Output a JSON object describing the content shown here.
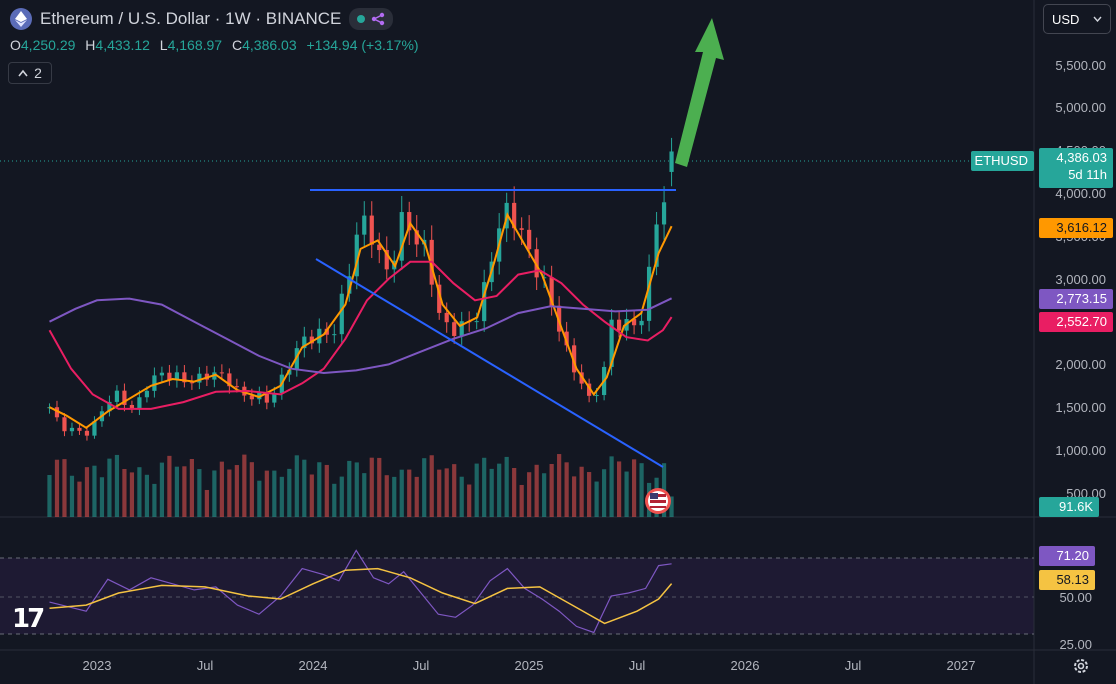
{
  "header": {
    "title": "Ethereum / U.S. Dollar · 1W · BINANCE",
    "ohlc": [
      {
        "key": "O",
        "value": "4,250.29"
      },
      {
        "key": "H",
        "value": "4,433.12"
      },
      {
        "key": "L",
        "value": "4,168.97"
      },
      {
        "key": "C",
        "value": "4,386.03"
      }
    ],
    "change": "+134.94 (+3.17%)",
    "indicators_collapsed_count": "2"
  },
  "currency": "USD",
  "colors": {
    "background": "#131722",
    "up": "#26a69a",
    "down": "#ef5350",
    "ema_fast": "#ff9800",
    "ema_mid": "#e91e63",
    "ema_slow": "#7e57c2",
    "trendline": "#2962ff",
    "arrow": "#4caf50",
    "rsi": "#7e57c2",
    "rsi_ma": "#f5c342"
  },
  "chart_data": [
    {
      "type": "candlestick",
      "symbol": "ETHUSD",
      "x_ticks": [
        "2023",
        "Jul",
        "2024",
        "Jul",
        "2025",
        "Jul",
        "2026",
        "Jul",
        "2027"
      ],
      "y_ticks": [
        "5,500.00",
        "5,000.00",
        "4,500.00",
        "4,000.00",
        "3,500.00",
        "3,000.00",
        "2,500.00",
        "2,000.00",
        "1,500.00",
        "1,000.00",
        "500.00"
      ],
      "ylim": [
        450,
        5800
      ],
      "price_anchors": [
        [
          2022.78,
          1500
        ],
        [
          2022.83,
          1280
        ],
        [
          2022.9,
          1220
        ],
        [
          2022.97,
          1200
        ],
        [
          2023.04,
          1560
        ],
        [
          2023.1,
          1650
        ],
        [
          2023.17,
          1450
        ],
        [
          2023.23,
          1750
        ],
        [
          2023.3,
          1900
        ],
        [
          2023.36,
          1850
        ],
        [
          2023.45,
          1800
        ],
        [
          2023.52,
          1900
        ],
        [
          2023.6,
          1850
        ],
        [
          2023.66,
          1650
        ],
        [
          2023.75,
          1620
        ],
        [
          2023.8,
          1580
        ],
        [
          2023.85,
          1800
        ],
        [
          2023.9,
          2050
        ],
        [
          2023.96,
          2300
        ],
        [
          2024.04,
          2350
        ],
        [
          2024.1,
          2400
        ],
        [
          2024.15,
          2900
        ],
        [
          2024.2,
          3500
        ],
        [
          2024.25,
          3700
        ],
        [
          2024.3,
          3300
        ],
        [
          2024.35,
          3050
        ],
        [
          2024.42,
          3750
        ],
        [
          2024.48,
          3450
        ],
        [
          2024.53,
          3300
        ],
        [
          2024.58,
          2600
        ],
        [
          2024.63,
          2400
        ],
        [
          2024.7,
          2450
        ],
        [
          2024.77,
          2600
        ],
        [
          2024.83,
          3300
        ],
        [
          2024.88,
          3800
        ],
        [
          2024.94,
          3700
        ],
        [
          2025.0,
          3300
        ],
        [
          2025.06,
          3000
        ],
        [
          2025.12,
          2600
        ],
        [
          2025.18,
          2100
        ],
        [
          2025.24,
          1800
        ],
        [
          2025.28,
          1580
        ],
        [
          2025.34,
          1800
        ],
        [
          2025.38,
          2500
        ],
        [
          2025.45,
          2450
        ],
        [
          2025.5,
          2500
        ],
        [
          2025.54,
          2600
        ],
        [
          2025.58,
          3700
        ],
        [
          2025.63,
          3900
        ],
        [
          2025.66,
          4386
        ]
      ],
      "series": [
        {
          "type": "line",
          "values": [
            [
              2022.78,
              1500
            ],
            [
              2022.86,
              1400
            ],
            [
              2022.95,
              1260
            ],
            [
              2023.05,
              1450
            ],
            [
              2023.15,
              1600
            ],
            [
              2023.25,
              1750
            ],
            [
              2023.35,
              1830
            ],
            [
              2023.45,
              1800
            ],
            [
              2023.55,
              1880
            ],
            [
              2023.65,
              1700
            ],
            [
              2023.75,
              1620
            ],
            [
              2023.85,
              1750
            ],
            [
              2023.95,
              2200
            ],
            [
              2024.05,
              2350
            ],
            [
              2024.15,
              2700
            ],
            [
              2024.22,
              3350
            ],
            [
              2024.3,
              3450
            ],
            [
              2024.38,
              3150
            ],
            [
              2024.45,
              3650
            ],
            [
              2024.52,
              3400
            ],
            [
              2024.6,
              2700
            ],
            [
              2024.68,
              2450
            ],
            [
              2024.76,
              2550
            ],
            [
              2024.84,
              3200
            ],
            [
              2024.9,
              3750
            ],
            [
              2024.98,
              3400
            ],
            [
              2025.06,
              3050
            ],
            [
              2025.14,
              2500
            ],
            [
              2025.22,
              1950
            ],
            [
              2025.3,
              1650
            ],
            [
              2025.36,
              1850
            ],
            [
              2025.44,
              2450
            ],
            [
              2025.52,
              2600
            ],
            [
              2025.6,
              3300
            ],
            [
              2025.66,
              3616
            ]
          ]
        },
        {
          "type": "line",
          "values": [
            [
              2022.78,
              2400
            ],
            [
              2022.88,
              1950
            ],
            [
              2022.98,
              1650
            ],
            [
              2023.1,
              1480
            ],
            [
              2023.25,
              1480
            ],
            [
              2023.4,
              1560
            ],
            [
              2023.55,
              1680
            ],
            [
              2023.7,
              1690
            ],
            [
              2023.85,
              1650
            ],
            [
              2023.95,
              1780
            ],
            [
              2024.05,
              1950
            ],
            [
              2024.15,
              2300
            ],
            [
              2024.25,
              2750
            ],
            [
              2024.35,
              3000
            ],
            [
              2024.45,
              3200
            ],
            [
              2024.55,
              3200
            ],
            [
              2024.65,
              2950
            ],
            [
              2024.75,
              2750
            ],
            [
              2024.85,
              2800
            ],
            [
              2024.95,
              3050
            ],
            [
              2025.05,
              3100
            ],
            [
              2025.15,
              2950
            ],
            [
              2025.25,
              2700
            ],
            [
              2025.35,
              2500
            ],
            [
              2025.45,
              2320
            ],
            [
              2025.55,
              2280
            ],
            [
              2025.62,
              2400
            ],
            [
              2025.66,
              2553
            ]
          ]
        },
        {
          "type": "line",
          "values": [
            [
              2022.78,
              2500
            ],
            [
              2022.9,
              2650
            ],
            [
              2023.0,
              2750
            ],
            [
              2023.15,
              2770
            ],
            [
              2023.3,
              2700
            ],
            [
              2023.45,
              2500
            ],
            [
              2023.6,
              2300
            ],
            [
              2023.75,
              2100
            ],
            [
              2023.9,
              1950
            ],
            [
              2024.05,
              1900
            ],
            [
              2024.2,
              1930
            ],
            [
              2024.35,
              2000
            ],
            [
              2024.5,
              2150
            ],
            [
              2024.65,
              2300
            ],
            [
              2024.8,
              2420
            ],
            [
              2024.95,
              2600
            ],
            [
              2025.1,
              2680
            ],
            [
              2025.25,
              2650
            ],
            [
              2025.4,
              2620
            ],
            [
              2025.55,
              2640
            ],
            [
              2025.66,
              2773
            ]
          ]
        }
      ],
      "last_price": "4,386.03",
      "last_price_countdown": "5d 11h",
      "labels": [
        "3,616.12",
        "2,773.15",
        "2,552.70"
      ]
    },
    {
      "type": "bar",
      "name": "Volume",
      "last_value": "91.6K"
    },
    {
      "type": "line",
      "y_ticks": [
        "75.00",
        "50.00",
        "25.00"
      ],
      "ylim": [
        22,
        82
      ],
      "series": [
        {
          "values": [
            [
              2022.78,
              46
            ],
            [
              2022.95,
              40
            ],
            [
              2023.05,
              61
            ],
            [
              2023.15,
              54
            ],
            [
              2023.25,
              62
            ],
            [
              2023.35,
              58
            ],
            [
              2023.45,
              54
            ],
            [
              2023.55,
              56
            ],
            [
              2023.65,
              44
            ],
            [
              2023.75,
              38
            ],
            [
              2023.85,
              50
            ],
            [
              2023.95,
              68
            ],
            [
              2024.05,
              64
            ],
            [
              2024.12,
              60
            ],
            [
              2024.2,
              80
            ],
            [
              2024.28,
              62
            ],
            [
              2024.35,
              58
            ],
            [
              2024.42,
              66
            ],
            [
              2024.5,
              52
            ],
            [
              2024.58,
              38
            ],
            [
              2024.66,
              36
            ],
            [
              2024.74,
              44
            ],
            [
              2024.82,
              60
            ],
            [
              2024.9,
              68
            ],
            [
              2024.98,
              55
            ],
            [
              2025.06,
              48
            ],
            [
              2025.14,
              40
            ],
            [
              2025.22,
              30
            ],
            [
              2025.3,
              26
            ],
            [
              2025.38,
              50
            ],
            [
              2025.46,
              52
            ],
            [
              2025.54,
              55
            ],
            [
              2025.6,
              70
            ],
            [
              2025.66,
              71.2
            ]
          ],
          "last": "71.20"
        },
        {
          "values": [
            [
              2022.78,
              42
            ],
            [
              2022.95,
              44
            ],
            [
              2023.1,
              52
            ],
            [
              2023.3,
              57
            ],
            [
              2023.5,
              56
            ],
            [
              2023.7,
              50
            ],
            [
              2023.85,
              48
            ],
            [
              2024.0,
              58
            ],
            [
              2024.15,
              67
            ],
            [
              2024.3,
              68
            ],
            [
              2024.45,
              62
            ],
            [
              2024.6,
              52
            ],
            [
              2024.75,
              45
            ],
            [
              2024.9,
              55
            ],
            [
              2025.05,
              56
            ],
            [
              2025.2,
              44
            ],
            [
              2025.35,
              32
            ],
            [
              2025.5,
              40
            ],
            [
              2025.6,
              48
            ],
            [
              2025.66,
              58.13
            ]
          ],
          "last": "58.13"
        }
      ]
    }
  ]
}
